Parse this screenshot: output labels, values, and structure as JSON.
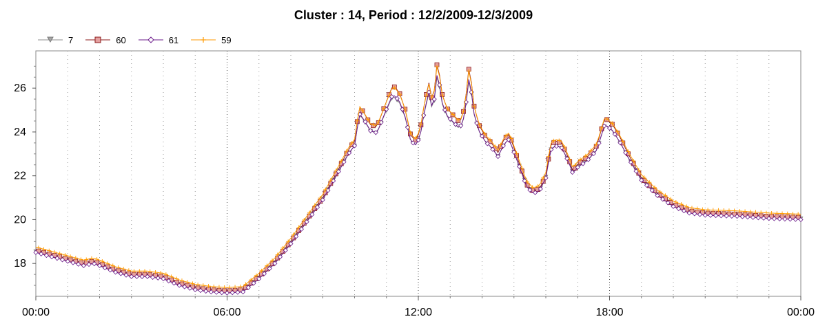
{
  "chart_data": {
    "type": "line",
    "title": "Cluster : 14, Period : 12/2/2009-12/3/2009",
    "xlabel": "",
    "ylabel": "",
    "x_ticks": [
      "00:00",
      "06:00",
      "12:00",
      "18:00",
      "00:00"
    ],
    "x_range_hours": [
      0,
      24
    ],
    "y_ticks": [
      "18",
      "20",
      "22",
      "24",
      "26"
    ],
    "ylim": [
      16.5,
      27.7
    ],
    "grid": "dotted vertical lines",
    "legend_position": "top-left",
    "series": [
      {
        "name": "7",
        "color": "#8c8c8c",
        "marker": "triangle-down",
        "fill": "#a6a6a6"
      },
      {
        "name": "60",
        "color": "#8b1a1a",
        "marker": "square",
        "fill": "#e4a0a0"
      },
      {
        "name": "61",
        "color": "#6a1a8a",
        "marker": "diamond",
        "fill": "#ffffff"
      },
      {
        "name": "59",
        "color": "#ff9a00",
        "marker": "plus",
        "fill": "#ff9a00"
      }
    ],
    "base_profile_hour_value": [
      [
        0,
        18.6
      ],
      [
        0.5,
        18.4
      ],
      [
        1,
        18.2
      ],
      [
        1.5,
        18.0
      ],
      [
        1.8,
        18.1
      ],
      [
        2,
        18.0
      ],
      [
        2.5,
        17.7
      ],
      [
        3,
        17.5
      ],
      [
        3.5,
        17.5
      ],
      [
        4,
        17.4
      ],
      [
        4.5,
        17.1
      ],
      [
        5,
        16.9
      ],
      [
        5.5,
        16.8
      ],
      [
        6,
        16.75
      ],
      [
        6.5,
        16.8
      ],
      [
        7,
        17.4
      ],
      [
        7.5,
        18.1
      ],
      [
        8,
        19.0
      ],
      [
        8.5,
        20.0
      ],
      [
        9,
        21.0
      ],
      [
        9.5,
        22.3
      ],
      [
        9.8,
        23.1
      ],
      [
        10,
        23.5
      ],
      [
        10.15,
        25.0
      ],
      [
        10.3,
        24.7
      ],
      [
        10.5,
        24.2
      ],
      [
        10.7,
        24.1
      ],
      [
        11,
        25.2
      ],
      [
        11.2,
        25.9
      ],
      [
        11.4,
        25.6
      ],
      [
        11.6,
        24.8
      ],
      [
        11.75,
        23.8
      ],
      [
        11.9,
        23.5
      ],
      [
        12.05,
        23.9
      ],
      [
        12.2,
        25.2
      ],
      [
        12.35,
        26.1
      ],
      [
        12.45,
        25.0
      ],
      [
        12.6,
        27.0
      ],
      [
        12.75,
        25.5
      ],
      [
        12.9,
        24.9
      ],
      [
        13.1,
        24.6
      ],
      [
        13.3,
        24.3
      ],
      [
        13.45,
        24.9
      ],
      [
        13.6,
        26.8
      ],
      [
        13.75,
        25.0
      ],
      [
        13.9,
        24.2
      ],
      [
        14.1,
        23.7
      ],
      [
        14.3,
        23.4
      ],
      [
        14.5,
        23.0
      ],
      [
        14.7,
        23.6
      ],
      [
        14.85,
        23.8
      ],
      [
        15.0,
        23.2
      ],
      [
        15.2,
        22.4
      ],
      [
        15.4,
        21.6
      ],
      [
        15.6,
        21.3
      ],
      [
        15.8,
        21.4
      ],
      [
        16.0,
        22.0
      ],
      [
        16.15,
        23.3
      ],
      [
        16.3,
        23.5
      ],
      [
        16.5,
        23.4
      ],
      [
        16.7,
        22.8
      ],
      [
        16.85,
        22.2
      ],
      [
        17.0,
        22.5
      ],
      [
        17.3,
        22.8
      ],
      [
        17.6,
        23.3
      ],
      [
        17.85,
        24.5
      ],
      [
        18.1,
        24.2
      ],
      [
        18.35,
        23.6
      ],
      [
        18.6,
        22.9
      ],
      [
        19.0,
        21.9
      ],
      [
        19.5,
        21.2
      ],
      [
        20.0,
        20.7
      ],
      [
        20.5,
        20.4
      ],
      [
        21.0,
        20.3
      ],
      [
        22,
        20.25
      ],
      [
        23,
        20.15
      ],
      [
        24,
        20.1
      ]
    ],
    "series_offsets": {
      "7": [
        -0.05,
        -0.25
      ],
      "60": [
        0.0,
        0.3
      ],
      "61": [
        -0.1,
        -0.1
      ],
      "59": [
        0.15,
        0.05
      ]
    }
  }
}
